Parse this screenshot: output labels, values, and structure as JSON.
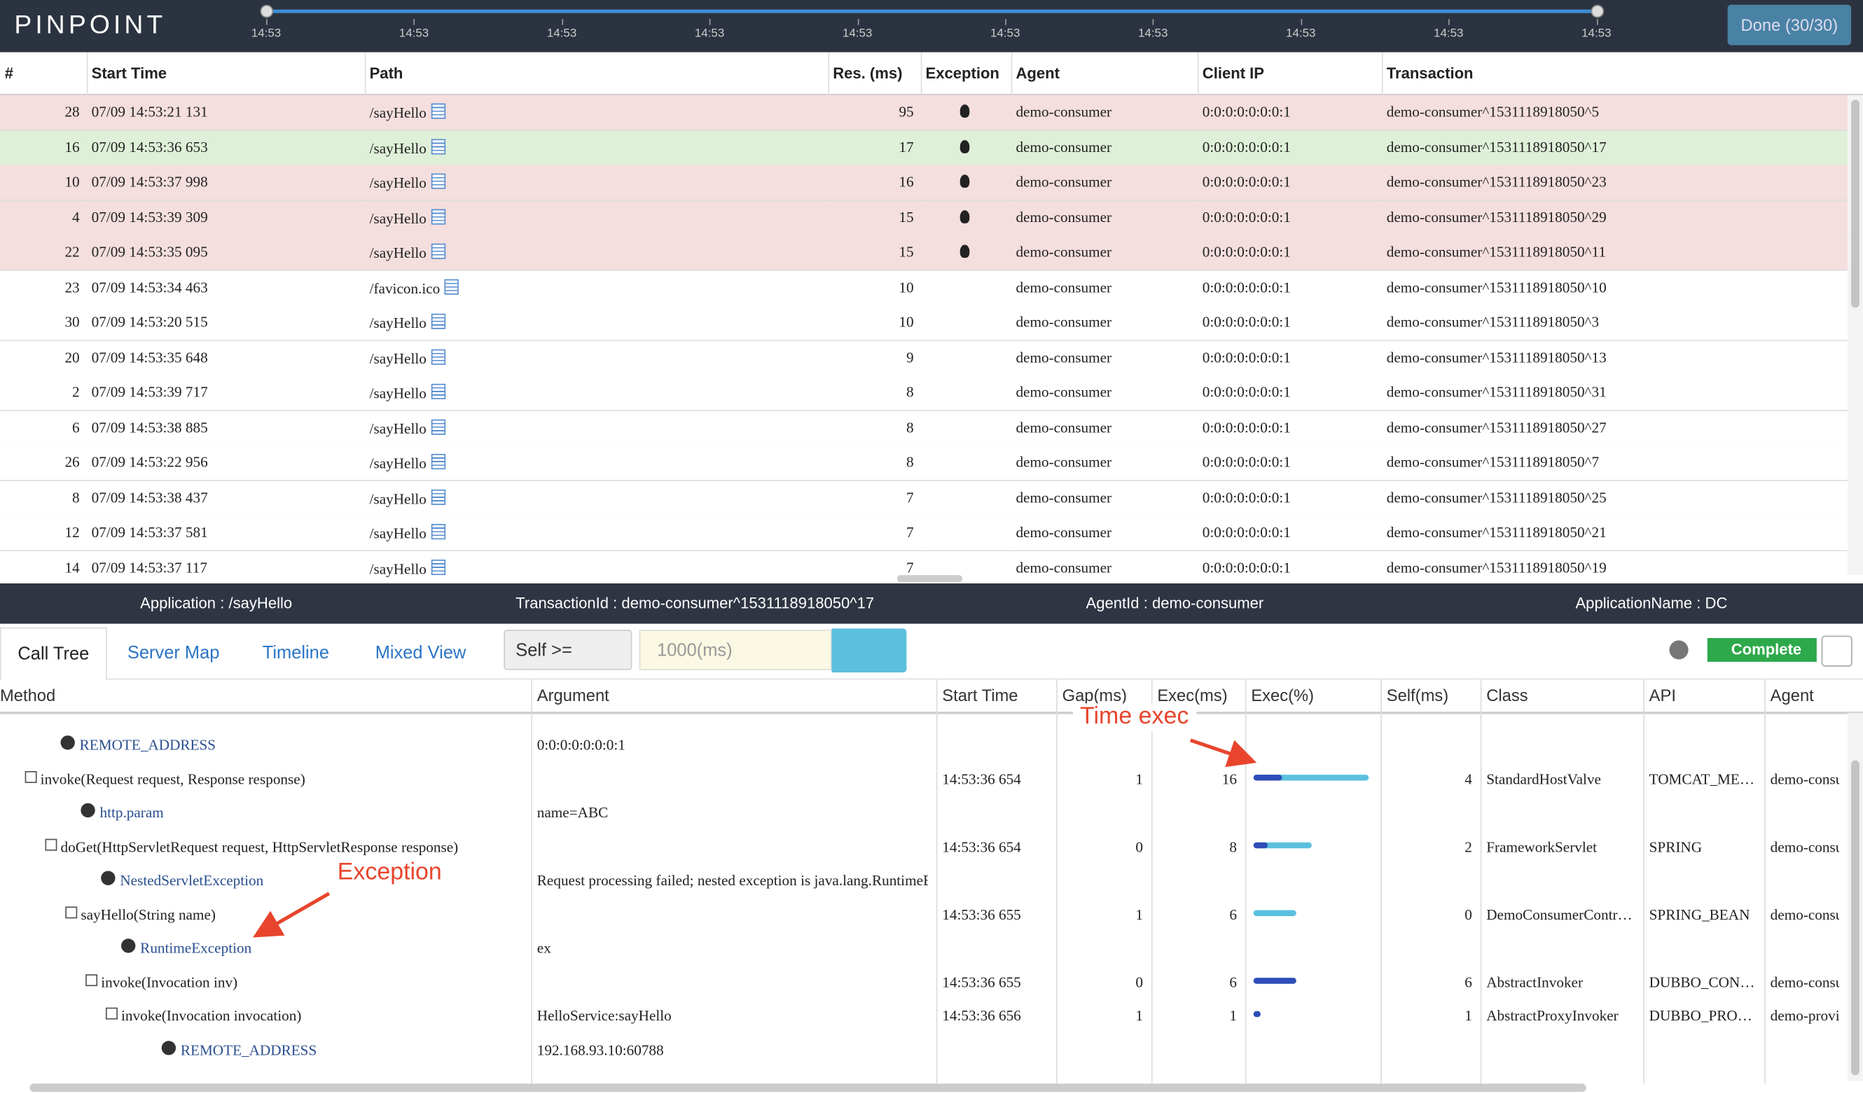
{
  "header": {
    "logo": "PINPOINT",
    "ticks": [
      "14:53",
      "14:53",
      "14:53",
      "14:53",
      "14:53",
      "14:53",
      "14:53",
      "14:53",
      "14:53",
      "14:53"
    ],
    "done": "Done (30/30)"
  },
  "transactions": {
    "columns": [
      "#",
      "Start Time",
      "Path",
      "Res. (ms)",
      "Exception",
      "Agent",
      "Client IP",
      "Transaction"
    ],
    "rows": [
      {
        "no": 28,
        "start": "07/09 14:53:21 131",
        "path": "/sayHello",
        "res": 95,
        "exception": true,
        "agent": "demo-consumer",
        "ip": "0:0:0:0:0:0:0:1",
        "tx": "demo-consumer^1531118918050^5",
        "state": "error"
      },
      {
        "no": 16,
        "start": "07/09 14:53:36 653",
        "path": "/sayHello",
        "res": 17,
        "exception": true,
        "agent": "demo-consumer",
        "ip": "0:0:0:0:0:0:0:1",
        "tx": "demo-consumer^1531118918050^17",
        "state": "selected"
      },
      {
        "no": 10,
        "start": "07/09 14:53:37 998",
        "path": "/sayHello",
        "res": 16,
        "exception": true,
        "agent": "demo-consumer",
        "ip": "0:0:0:0:0:0:0:1",
        "tx": "demo-consumer^1531118918050^23",
        "state": "error"
      },
      {
        "no": 4,
        "start": "07/09 14:53:39 309",
        "path": "/sayHello",
        "res": 15,
        "exception": true,
        "agent": "demo-consumer",
        "ip": "0:0:0:0:0:0:0:1",
        "tx": "demo-consumer^1531118918050^29",
        "state": "error"
      },
      {
        "no": 22,
        "start": "07/09 14:53:35 095",
        "path": "/sayHello",
        "res": 15,
        "exception": true,
        "agent": "demo-consumer",
        "ip": "0:0:0:0:0:0:0:1",
        "tx": "demo-consumer^1531118918050^11",
        "state": "error"
      },
      {
        "no": 23,
        "start": "07/09 14:53:34 463",
        "path": "/favicon.ico",
        "res": 10,
        "exception": false,
        "agent": "demo-consumer",
        "ip": "0:0:0:0:0:0:0:1",
        "tx": "demo-consumer^1531118918050^10",
        "state": "normal"
      },
      {
        "no": 30,
        "start": "07/09 14:53:20 515",
        "path": "/sayHello",
        "res": 10,
        "exception": false,
        "agent": "demo-consumer",
        "ip": "0:0:0:0:0:0:0:1",
        "tx": "demo-consumer^1531118918050^3",
        "state": "normal"
      },
      {
        "no": 20,
        "start": "07/09 14:53:35 648",
        "path": "/sayHello",
        "res": 9,
        "exception": false,
        "agent": "demo-consumer",
        "ip": "0:0:0:0:0:0:0:1",
        "tx": "demo-consumer^1531118918050^13",
        "state": "normal"
      },
      {
        "no": 2,
        "start": "07/09 14:53:39 717",
        "path": "/sayHello",
        "res": 8,
        "exception": false,
        "agent": "demo-consumer",
        "ip": "0:0:0:0:0:0:0:1",
        "tx": "demo-consumer^1531118918050^31",
        "state": "normal"
      },
      {
        "no": 6,
        "start": "07/09 14:53:38 885",
        "path": "/sayHello",
        "res": 8,
        "exception": false,
        "agent": "demo-consumer",
        "ip": "0:0:0:0:0:0:0:1",
        "tx": "demo-consumer^1531118918050^27",
        "state": "normal"
      },
      {
        "no": 26,
        "start": "07/09 14:53:22 956",
        "path": "/sayHello",
        "res": 8,
        "exception": false,
        "agent": "demo-consumer",
        "ip": "0:0:0:0:0:0:0:1",
        "tx": "demo-consumer^1531118918050^7",
        "state": "normal"
      },
      {
        "no": 8,
        "start": "07/09 14:53:38 437",
        "path": "/sayHello",
        "res": 7,
        "exception": false,
        "agent": "demo-consumer",
        "ip": "0:0:0:0:0:0:0:1",
        "tx": "demo-consumer^1531118918050^25",
        "state": "normal"
      },
      {
        "no": 12,
        "start": "07/09 14:53:37 581",
        "path": "/sayHello",
        "res": 7,
        "exception": false,
        "agent": "demo-consumer",
        "ip": "0:0:0:0:0:0:0:1",
        "tx": "demo-consumer^1531118918050^21",
        "state": "normal"
      },
      {
        "no": 14,
        "start": "07/09 14:53:37 117",
        "path": "/sayHello",
        "res": 7,
        "exception": false,
        "agent": "demo-consumer",
        "ip": "0:0:0:0:0:0:0:1",
        "tx": "demo-consumer^1531118918050^19",
        "state": "normal"
      }
    ]
  },
  "info": [
    "Application : /sayHello",
    "TransactionId : demo-consumer^1531118918050^17",
    "AgentId : demo-consumer",
    "ApplicationName : DC"
  ],
  "tabs": [
    "Call Tree",
    "Server Map",
    "Timeline",
    "Mixed View"
  ],
  "filter": {
    "select": "Self >=",
    "placeholder": "1000(ms)",
    "complete": "Complete"
  },
  "calltree": {
    "columns": [
      "Method",
      "Argument",
      "Start Time",
      "Gap(ms)",
      "Exec(ms)",
      "Exec(%)",
      "Self(ms)",
      "Class",
      "API",
      "Agent"
    ],
    "rows": [
      {
        "depth": 1,
        "info": true,
        "method": "REMOTE_ADDRESS",
        "arg": "0:0:0:0:0:0:0:1"
      },
      {
        "depth": 0,
        "info": false,
        "method": "invoke(Request request, Response response)",
        "start": "14:53:36 654",
        "gap": 1,
        "exec": 16,
        "self": 4,
        "class": "StandardHostValve",
        "api": "TOMCAT_ME…",
        "agent": "demo-consu"
      },
      {
        "depth": 2,
        "info": true,
        "method": "http.param",
        "arg": "name=ABC"
      },
      {
        "depth": 1,
        "info": false,
        "method": "doGet(HttpServletRequest request, HttpServletResponse response)",
        "start": "14:53:36 654",
        "gap": 0,
        "exec": 8,
        "self": 2,
        "class": "FrameworkServlet",
        "api": "SPRING",
        "agent": "demo-consu"
      },
      {
        "depth": 3,
        "info": true,
        "method": "NestedServletException",
        "arg": "Request processing failed; nested exception is java.lang.RuntimeE"
      },
      {
        "depth": 2,
        "info": false,
        "method": "sayHello(String name)",
        "start": "14:53:36 655",
        "gap": 1,
        "exec": 6,
        "self": 0,
        "class": "DemoConsumerContr…",
        "api": "SPRING_BEAN",
        "agent": "demo-consu"
      },
      {
        "depth": 4,
        "info": true,
        "method": "RuntimeException",
        "arg": "ex"
      },
      {
        "depth": 3,
        "info": false,
        "method": "invoke(Invocation inv)",
        "start": "14:53:36 655",
        "gap": 0,
        "exec": 6,
        "self": 6,
        "class": "AbstractInvoker",
        "api": "DUBBO_CON…",
        "agent": "demo-consu"
      },
      {
        "depth": 4,
        "info": false,
        "method": "invoke(Invocation invocation)",
        "arg": "HelloService:sayHello",
        "start": "14:53:36 656",
        "gap": 1,
        "exec": 1,
        "self": 1,
        "class": "AbstractProxyInvoker",
        "api": "DUBBO_PRO…",
        "agent": "demo-provic"
      },
      {
        "depth": 6,
        "info": true,
        "method": "REMOTE_ADDRESS",
        "arg": "192.168.93.10:60788"
      }
    ]
  },
  "annotations": {
    "time_exec": "Time exec",
    "exception": "Exception"
  }
}
